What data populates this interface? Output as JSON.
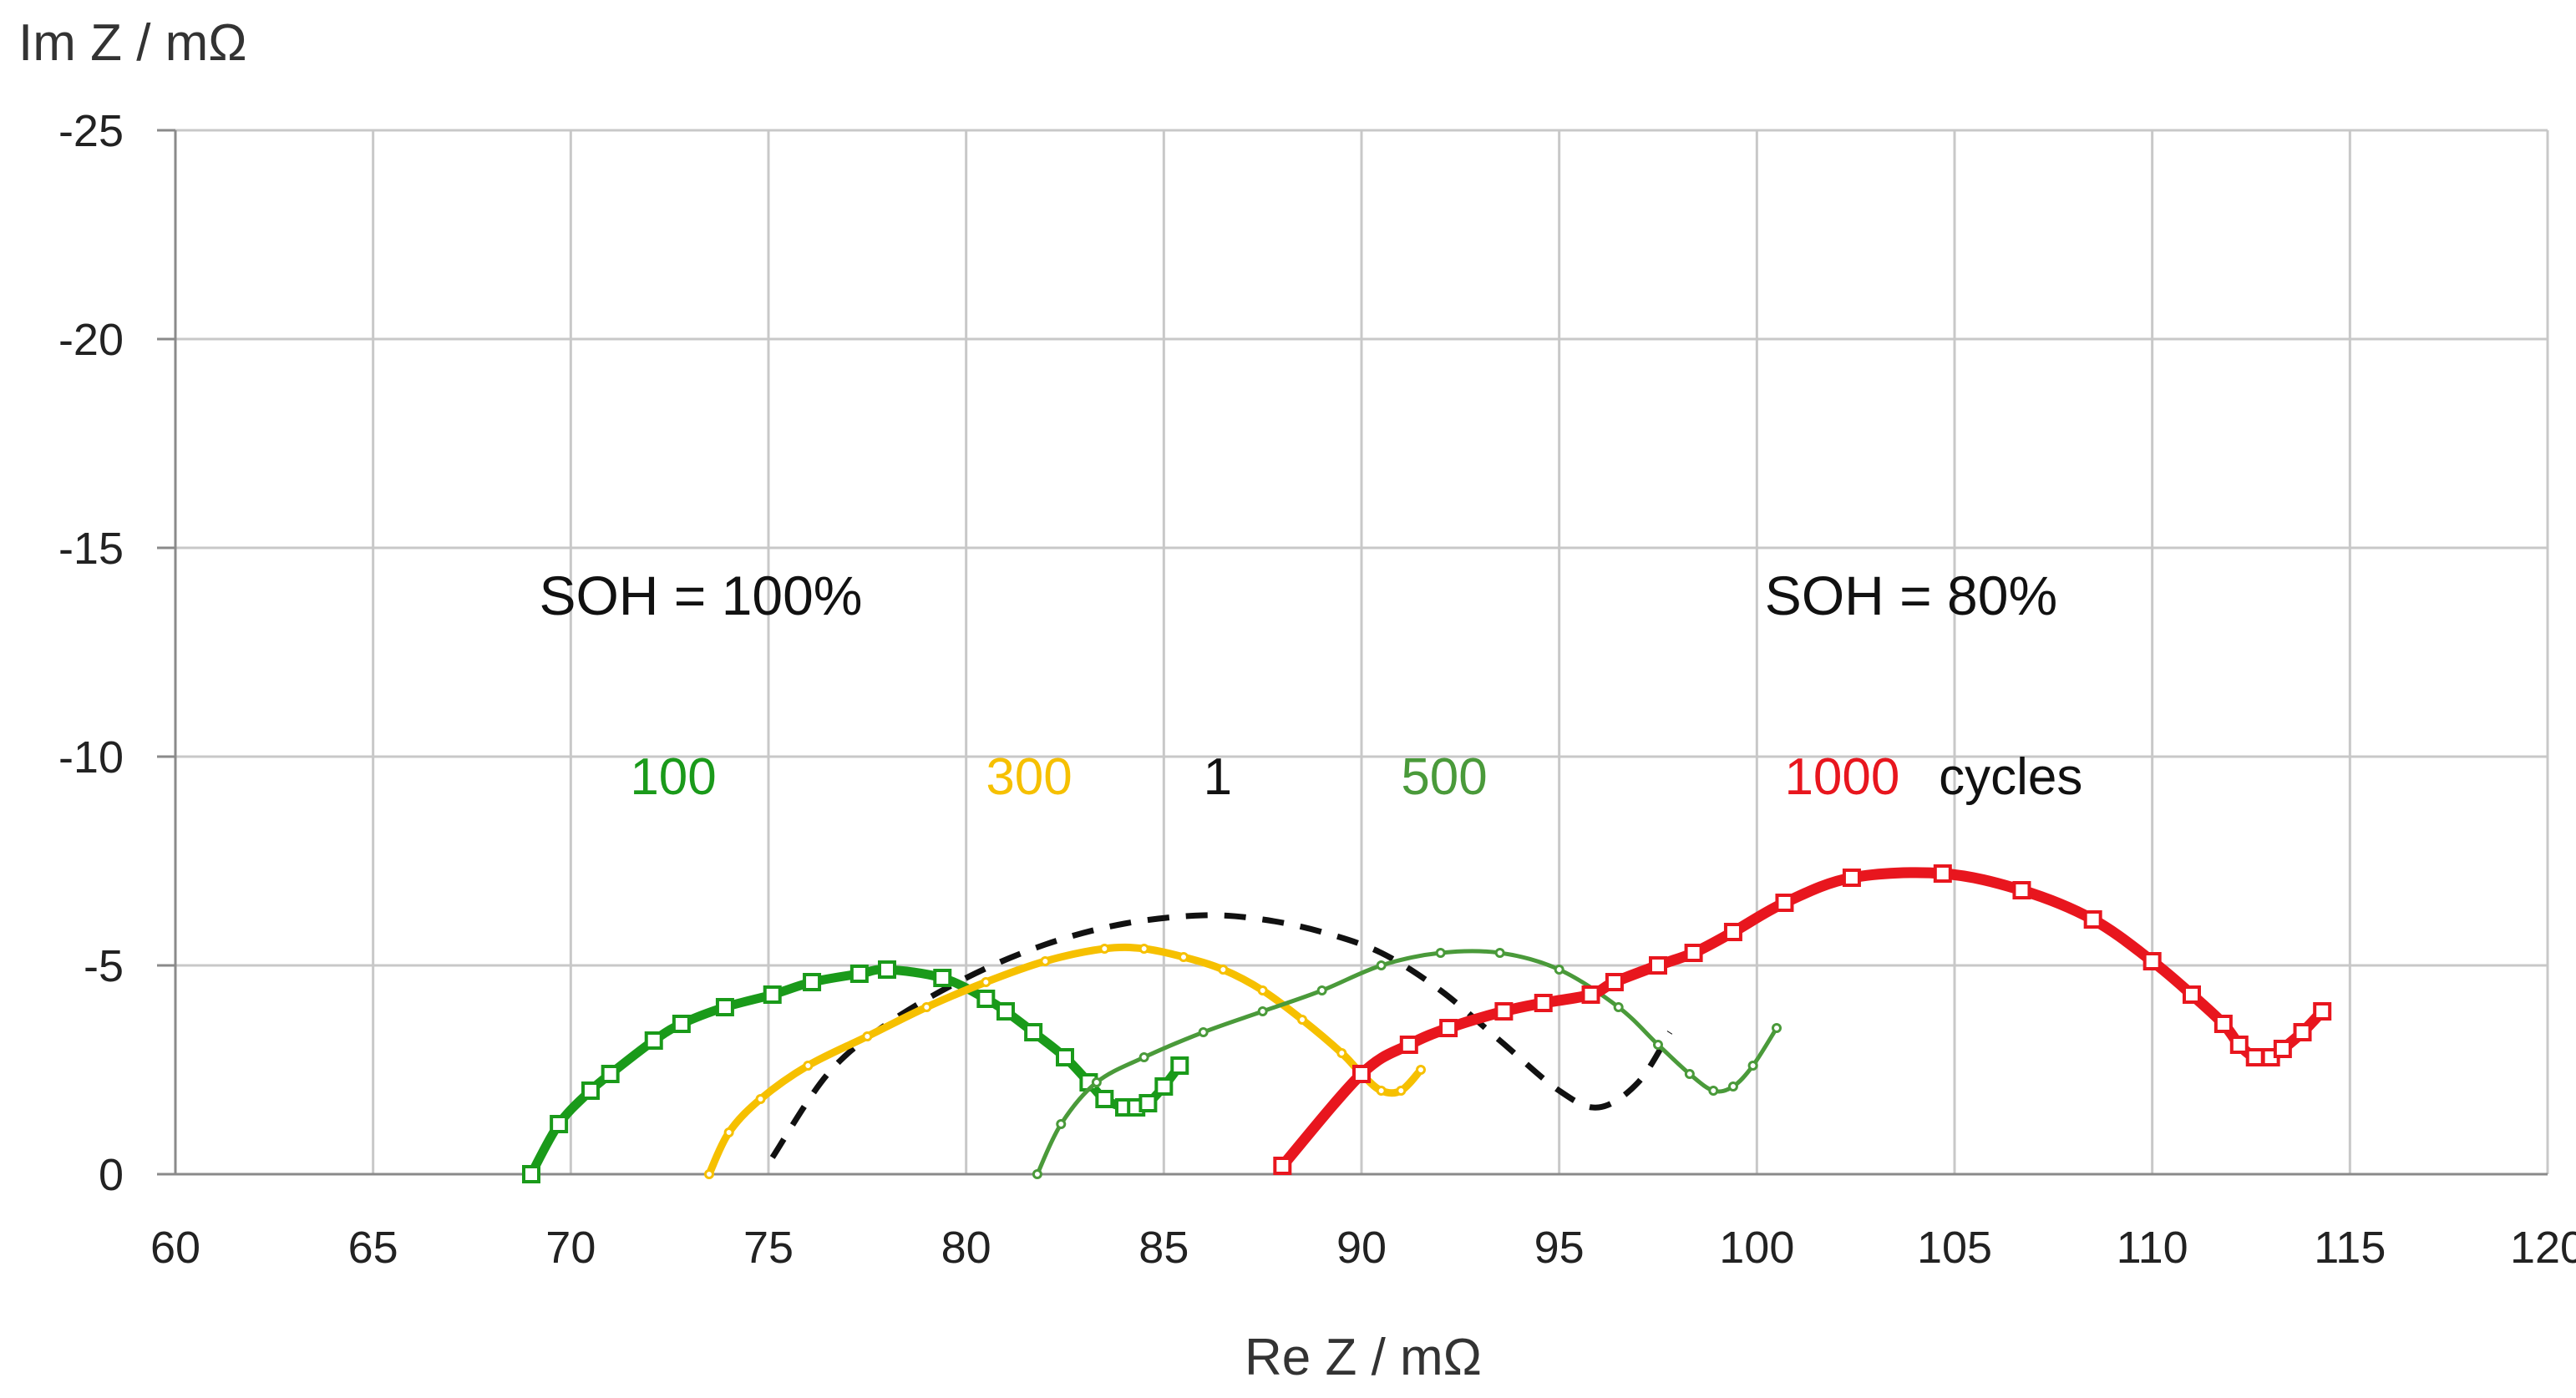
{
  "chart_data": {
    "type": "scatter",
    "title": "",
    "xlabel": "Re Z / mΩ",
    "ylabel": "Im Z / mΩ",
    "xlim": [
      60,
      120
    ],
    "ylim": [
      0,
      -25
    ],
    "x_ticks": [
      "60",
      "65",
      "70",
      "75",
      "80",
      "85",
      "90",
      "95",
      "100",
      "105",
      "110",
      "115",
      "120"
    ],
    "y_ticks": [
      "0",
      "-5",
      "-10",
      "-15",
      "-20",
      "-25"
    ],
    "grid": true,
    "annotations": [
      {
        "text": "SOH = 100%",
        "x": 69.2,
        "y": -13.4
      },
      {
        "text": "SOH = 80%",
        "x": 100.2,
        "y": -13.4
      }
    ],
    "cycle_labels": [
      {
        "text": "100",
        "color": "#1a9a1a",
        "x": 71.5,
        "y": -9.1
      },
      {
        "text": "300",
        "color": "#f6c000",
        "x": 80.5,
        "y": -9.1
      },
      {
        "text": "1",
        "color": "#111111",
        "x": 86.0,
        "y": -9.1
      },
      {
        "text": "500",
        "color": "#4a9a3a",
        "x": 91.0,
        "y": -9.1
      },
      {
        "text": "1000",
        "color": "#e8161e",
        "x": 100.7,
        "y": -9.1
      },
      {
        "text": "cycles",
        "color": "#111111",
        "x": 104.6,
        "y": -9.1
      }
    ],
    "series": [
      {
        "name": "1 cycle",
        "color": "#111111",
        "style": "dashed",
        "width": 7,
        "marker": "none",
        "marker_size": 0,
        "x": [
          75.1,
          76.5,
          78.0,
          80.0,
          82.0,
          84.0,
          86.0,
          87.5,
          89.0,
          90.5,
          92.0,
          93.5,
          95.0,
          96.0,
          97.0,
          97.8
        ],
        "y": [
          -0.4,
          -2.4,
          -3.6,
          -4.7,
          -5.5,
          -6.0,
          -6.2,
          -6.1,
          -5.8,
          -5.3,
          -4.4,
          -3.2,
          -2.0,
          -1.6,
          -2.2,
          -3.4
        ]
      },
      {
        "name": "100 cycles",
        "color": "#1a9a1a",
        "style": "solid",
        "width": 11,
        "marker": "square",
        "marker_size": 18,
        "x": [
          69.0,
          69.7,
          70.5,
          71.0,
          72.1,
          72.8,
          73.9,
          75.1,
          76.1,
          77.3,
          78.0,
          79.4,
          80.5,
          81.0,
          81.7,
          82.5,
          83.1,
          83.5,
          84.0,
          84.3,
          84.6,
          85.0,
          85.4
        ],
        "y": [
          0.0,
          -1.2,
          -2.0,
          -2.4,
          -3.2,
          -3.6,
          -4.0,
          -4.3,
          -4.6,
          -4.8,
          -4.9,
          -4.7,
          -4.2,
          -3.9,
          -3.4,
          -2.8,
          -2.2,
          -1.8,
          -1.6,
          -1.6,
          -1.7,
          -2.1,
          -2.6
        ]
      },
      {
        "name": "300 cycles",
        "color": "#f6c000",
        "style": "solid",
        "width": 9,
        "marker": "circle",
        "marker_size": 9,
        "x": [
          73.5,
          74.0,
          74.8,
          76.0,
          77.5,
          79.0,
          80.5,
          82.0,
          83.5,
          84.5,
          85.5,
          86.5,
          87.5,
          88.5,
          89.5,
          90.0,
          90.5,
          91.0,
          91.5
        ],
        "y": [
          0.0,
          -1.0,
          -1.8,
          -2.6,
          -3.3,
          -4.0,
          -4.6,
          -5.1,
          -5.4,
          -5.4,
          -5.2,
          -4.9,
          -4.4,
          -3.7,
          -2.9,
          -2.4,
          -2.0,
          -2.0,
          -2.5
        ]
      },
      {
        "name": "500 cycles",
        "color": "#4a9a3a",
        "style": "solid",
        "width": 5,
        "marker": "circle",
        "marker_size": 9,
        "x": [
          81.8,
          82.4,
          83.3,
          84.5,
          86.0,
          87.5,
          89.0,
          90.5,
          92.0,
          93.5,
          95.0,
          96.5,
          97.5,
          98.3,
          98.9,
          99.4,
          99.9,
          100.5
        ],
        "y": [
          0.0,
          -1.2,
          -2.2,
          -2.8,
          -3.4,
          -3.9,
          -4.4,
          -5.0,
          -5.3,
          -5.3,
          -4.9,
          -4.0,
          -3.1,
          -2.4,
          -2.0,
          -2.1,
          -2.6,
          -3.5
        ]
      },
      {
        "name": "1000 cycles",
        "color": "#e8161e",
        "style": "solid",
        "width": 13,
        "marker": "square",
        "marker_size": 18,
        "x": [
          88.0,
          90.0,
          91.2,
          92.2,
          93.6,
          94.6,
          95.8,
          96.4,
          97.5,
          98.4,
          99.4,
          100.7,
          102.4,
          104.7,
          106.7,
          108.5,
          110.0,
          111.0,
          111.8,
          112.2,
          112.6,
          113.0,
          113.3,
          113.8,
          114.3
        ],
        "y": [
          -0.2,
          -2.4,
          -3.1,
          -3.5,
          -3.9,
          -4.1,
          -4.3,
          -4.6,
          -5.0,
          -5.3,
          -5.8,
          -6.5,
          -7.1,
          -7.2,
          -6.8,
          -6.1,
          -5.1,
          -4.3,
          -3.6,
          -3.1,
          -2.8,
          -2.8,
          -3.0,
          -3.4,
          -3.9
        ]
      }
    ]
  }
}
